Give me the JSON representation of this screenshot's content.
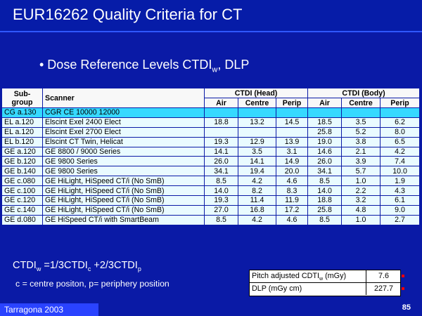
{
  "slide": {
    "title": "EUR16262 Quality Criteria for CT",
    "bullet": "• Dose Reference Levels CTDI",
    "bullet_sub": "w",
    "bullet_tail": ", DLP",
    "footer": "Tarragona 2003",
    "page": "85"
  },
  "table": {
    "headers": {
      "subgroup_line1": "Sub-",
      "subgroup_line2": "group",
      "scanner": "Scanner",
      "ctdi_head": "CTDI (Head)",
      "ctdi_body": "CTDI (Body)",
      "air": "Air",
      "centre": "Centre",
      "perip": "Perip"
    },
    "rows": [
      {
        "sub": "CG a.130",
        "scanner": "CGR CE 10000 12000",
        "h_air": "",
        "h_centre": "",
        "h_perip": "",
        "b_air": "",
        "b_centre": "",
        "b_perip": "",
        "style": "A"
      },
      {
        "sub": "EL a.120",
        "scanner": "Elscint Exel 2400 Elect",
        "h_air": "18.8",
        "h_centre": "13.2",
        "h_perip": "14.5",
        "b_air": "18.5",
        "b_centre": "3.5",
        "b_perip": "6.2",
        "style": "B"
      },
      {
        "sub": "EL a.120",
        "scanner": "Elscint Exel 2700 Elect",
        "h_air": "",
        "h_centre": "",
        "h_perip": "",
        "b_air": "25.8",
        "b_centre": "5.2",
        "b_perip": "8.0",
        "style": "B"
      },
      {
        "sub": "EL b.120",
        "scanner": "Elscint CT Twin, Helicat",
        "h_air": "19.3",
        "h_centre": "12.9",
        "h_perip": "13.9",
        "b_air": "19.0",
        "b_centre": "3.8",
        "b_perip": "6.5",
        "style": "B"
      },
      {
        "sub": "GE a.120",
        "scanner": "GE 8800 / 9000 Series",
        "h_air": "14.1",
        "h_centre": "3.5",
        "h_perip": "3.1",
        "b_air": "14.6",
        "b_centre": "2.1",
        "b_perip": "4.2",
        "style": "B"
      },
      {
        "sub": "GE b.120",
        "scanner": "GE 9800 Series",
        "h_air": "26.0",
        "h_centre": "14.1",
        "h_perip": "14.9",
        "b_air": "26.0",
        "b_centre": "3.9",
        "b_perip": "7.4",
        "style": "B"
      },
      {
        "sub": "GE b.140",
        "scanner": "GE 9800 Series",
        "h_air": "34.1",
        "h_centre": "19.4",
        "h_perip": "20.0",
        "b_air": "34.1",
        "b_centre": "5.7",
        "b_perip": "10.0",
        "style": "B"
      },
      {
        "sub": "GE c.080",
        "scanner": "GE HiLight, HiSpeed CT/i (No SmB)",
        "h_air": "8.5",
        "h_centre": "4.2",
        "h_perip": "4.6",
        "b_air": "8.5",
        "b_centre": "1.0",
        "b_perip": "1.9",
        "style": "B"
      },
      {
        "sub": "GE c.100",
        "scanner": "GE HiLight, HiSpeed CT/i (No SmB)",
        "h_air": "14.0",
        "h_centre": "8.2",
        "h_perip": "8.3",
        "b_air": "14.0",
        "b_centre": "2.2",
        "b_perip": "4.3",
        "style": "B"
      },
      {
        "sub": "GE c.120",
        "scanner": "GE HiLight, HiSpeed CT/i (No SmB)",
        "h_air": "19.3",
        "h_centre": "11.4",
        "h_perip": "11.9",
        "b_air": "18.8",
        "b_centre": "3.2",
        "b_perip": "6.1",
        "style": "B"
      },
      {
        "sub": "GE c.140",
        "scanner": "GE HiLight, HiSpeed CT/i (No SmB)",
        "h_air": "27.0",
        "h_centre": "16.8",
        "h_perip": "17.2",
        "b_air": "25.8",
        "b_centre": "4.8",
        "b_perip": "9.0",
        "style": "B"
      },
      {
        "sub": "GE d.080",
        "scanner": "GE HiSpeed CT/i with SmartBeam",
        "h_air": "8.5",
        "h_centre": "4.2",
        "h_perip": "4.6",
        "b_air": "8.5",
        "b_centre": "1.0",
        "b_perip": "2.7",
        "style": "B"
      }
    ]
  },
  "formula": {
    "text1": "CTDI",
    "sub1": "w",
    "text2": " =1/3CTDI",
    "sub2": "c",
    "text3": " +2/3CTDI",
    "sub3": "p"
  },
  "note": "c = centre positon, p= periphery position",
  "resultbox": {
    "row1_label": "Pitch adjusted CDTI",
    "row1_label_sub": "w",
    "row1_label_tail": " (mGy)",
    "row1_value": "7.6",
    "row2_label": "DLP (mGy cm)",
    "row2_value": "227.7"
  }
}
